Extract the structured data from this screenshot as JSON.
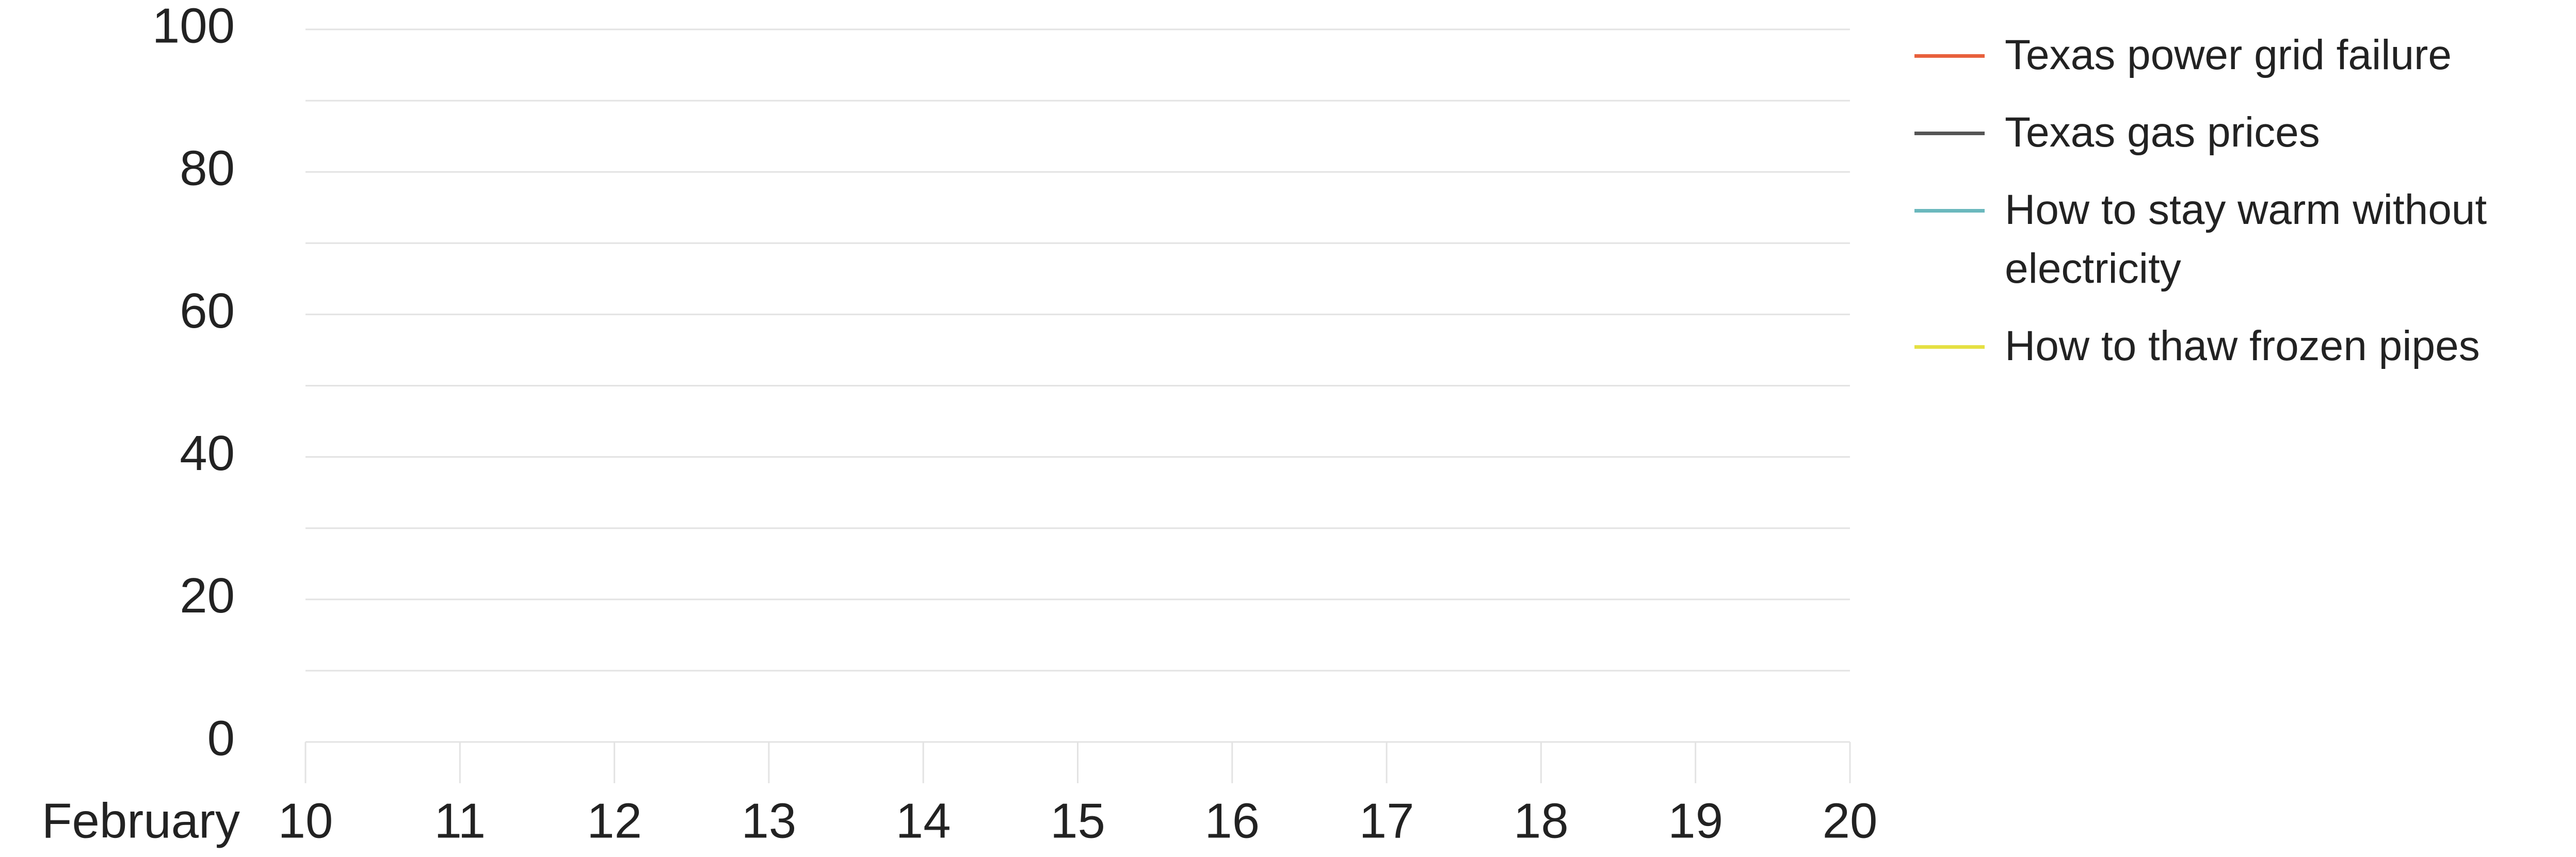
{
  "chart_data": {
    "type": "line",
    "xlabel": "February",
    "x": [
      10,
      11,
      12,
      13,
      14,
      15,
      16,
      17,
      18,
      19,
      20
    ],
    "xlim": [
      10,
      20
    ],
    "xticks": [
      10,
      11,
      12,
      13,
      14,
      15,
      16,
      17,
      18,
      19,
      20
    ],
    "ylim": [
      0,
      100
    ],
    "yticks": [
      0,
      20,
      40,
      60,
      80,
      100
    ],
    "yminor": [
      10,
      30,
      50,
      70,
      90
    ],
    "grid": true,
    "legend": "right",
    "series": [
      {
        "name": "Texas power grid failure",
        "color": "#e8603c",
        "values": [
          null,
          null,
          null,
          null,
          null,
          null,
          null,
          null,
          null,
          null,
          null
        ]
      },
      {
        "name": "Texas gas prices",
        "color": "#555555",
        "values": [
          null,
          null,
          null,
          null,
          null,
          null,
          null,
          null,
          null,
          null,
          null
        ]
      },
      {
        "name": "How to stay warm without electricity",
        "color": "#6bb8bd",
        "values": [
          null,
          null,
          null,
          null,
          null,
          null,
          null,
          null,
          null,
          null,
          null
        ]
      },
      {
        "name": "How to thaw frozen pipes",
        "color": "#e5e043",
        "values": [
          null,
          null,
          null,
          null,
          null,
          null,
          null,
          null,
          null,
          null,
          null
        ]
      }
    ]
  }
}
